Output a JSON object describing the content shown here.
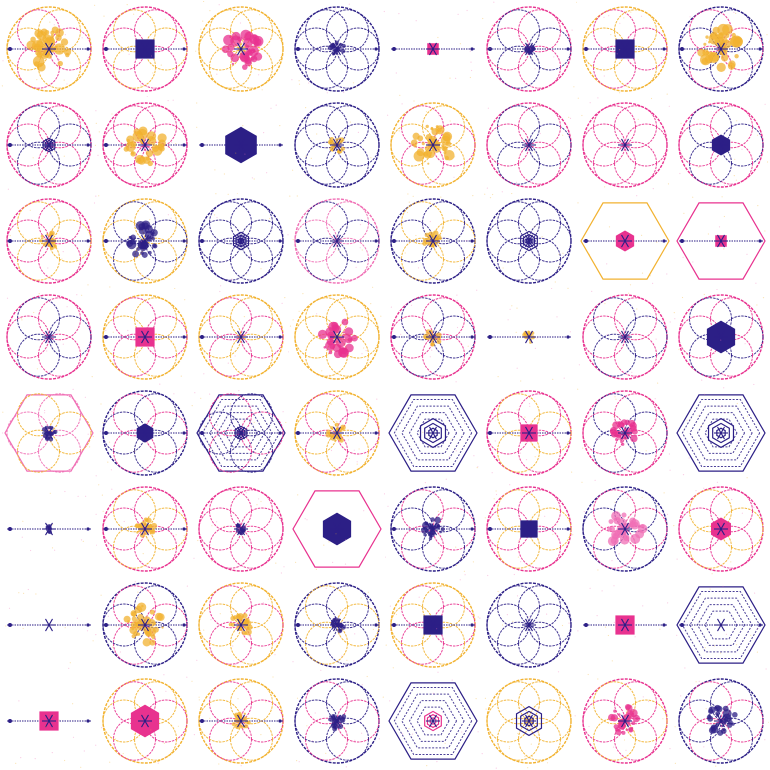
{
  "colors": {
    "navy": "#2c1f86",
    "magenta": "#e8328f",
    "gold": "#f2b230",
    "pink": "#f06fb5",
    "white": "#ffffff"
  },
  "tiles": [
    {
      "frame": "circle",
      "frame_color": "gold",
      "flower": "magenta",
      "center": "blob",
      "center_color": "gold",
      "center_size": 0.42,
      "spokes": true
    },
    {
      "frame": "circle",
      "frame_color": "magenta",
      "flower": "gold",
      "center": "square",
      "center_color": "navy",
      "center_size": 0.2,
      "spokes": true
    },
    {
      "frame": "circle",
      "frame_color": "gold",
      "flower": "gold",
      "center": "blob",
      "center_color": "magenta",
      "center_size": 0.4,
      "spokes": false
    },
    {
      "frame": "circle",
      "frame_color": "navy",
      "flower": "navy",
      "center": "blob",
      "center_color": "navy",
      "center_size": 0.16,
      "spokes": true
    },
    {
      "frame": "none",
      "frame_color": "navy",
      "flower": "none",
      "center": "square",
      "center_color": "magenta",
      "center_size": 0.12,
      "spokes": true
    },
    {
      "frame": "circle",
      "frame_color": "magenta",
      "flower": "navy",
      "center": "blob",
      "center_color": "navy",
      "center_size": 0.1,
      "spokes": true
    },
    {
      "frame": "circle",
      "frame_color": "gold",
      "flower": "magenta",
      "center": "square",
      "center_color": "navy",
      "center_size": 0.2,
      "spokes": true
    },
    {
      "frame": "circle",
      "frame_color": "navy",
      "flower": "magenta",
      "center": "blob",
      "center_color": "gold",
      "center_size": 0.44,
      "spokes": true
    },
    {
      "frame": "circle",
      "frame_color": "magenta",
      "flower": "navy",
      "center": "rings",
      "center_color": "navy",
      "center_size": 0.14,
      "spokes": true
    },
    {
      "frame": "circle",
      "frame_color": "magenta",
      "flower": "magenta",
      "center": "blob",
      "center_color": "gold",
      "center_size": 0.4,
      "spokes": true
    },
    {
      "frame": "none",
      "frame_color": "navy",
      "flower": "none",
      "center": "hexagon",
      "center_color": "navy",
      "center_size": 0.38,
      "spokes": true
    },
    {
      "frame": "circle",
      "frame_color": "navy",
      "flower": "navy",
      "center": "blob",
      "center_color": "gold",
      "center_size": 0.16,
      "spokes": false
    },
    {
      "frame": "circle",
      "frame_color": "gold",
      "flower": "magenta",
      "center": "blob",
      "center_color": "gold",
      "center_size": 0.42,
      "spokes": false
    },
    {
      "frame": "circle",
      "frame_color": "magenta",
      "flower": "navy",
      "center": "none",
      "center_color": "navy",
      "center_size": 0.06,
      "spokes": false
    },
    {
      "frame": "circle",
      "frame_color": "magenta",
      "flower": "magenta",
      "center": "none",
      "center_color": "navy",
      "center_size": 0.06,
      "spokes": false
    },
    {
      "frame": "circle",
      "frame_color": "magenta",
      "flower": "navy",
      "center": "hexagon",
      "center_color": "navy",
      "center_size": 0.22,
      "spokes": false
    },
    {
      "frame": "circle",
      "frame_color": "magenta",
      "flower": "gold",
      "center": "blob",
      "center_color": "gold",
      "center_size": 0.18,
      "spokes": true
    },
    {
      "frame": "circle",
      "frame_color": "gold",
      "flower": "navy",
      "center": "blob",
      "center_color": "navy",
      "center_size": 0.34,
      "spokes": true
    },
    {
      "frame": "circle",
      "frame_color": "navy",
      "flower": "navy",
      "center": "rings",
      "center_color": "navy",
      "center_size": 0.18,
      "spokes": true
    },
    {
      "frame": "circle",
      "frame_color": "pink",
      "flower": "navy",
      "center": "none",
      "center_color": "navy",
      "center_size": 0.06,
      "spokes": true
    },
    {
      "frame": "circle",
      "frame_color": "navy",
      "flower": "gold",
      "center": "blob",
      "center_color": "gold",
      "center_size": 0.18,
      "spokes": true
    },
    {
      "frame": "circle",
      "frame_color": "navy",
      "flower": "navy",
      "center": "rings",
      "center_color": "navy",
      "center_size": 0.2,
      "spokes": false
    },
    {
      "frame": "hexagon",
      "frame_color": "gold",
      "flower": "none",
      "center": "hexagon",
      "center_color": "magenta",
      "center_size": 0.22,
      "spokes": true
    },
    {
      "frame": "hexagon",
      "frame_color": "magenta",
      "flower": "none",
      "center": "square",
      "center_color": "magenta",
      "center_size": 0.12,
      "spokes": true
    },
    {
      "frame": "circle",
      "frame_color": "magenta",
      "flower": "navy",
      "center": "none",
      "center_color": "navy",
      "center_size": 0.06,
      "spokes": false
    },
    {
      "frame": "circle",
      "frame_color": "gold",
      "flower": "magenta",
      "center": "square",
      "center_color": "magenta",
      "center_size": 0.2,
      "spokes": true
    },
    {
      "frame": "circle",
      "frame_color": "gold",
      "flower": "magenta",
      "center": "none",
      "center_color": "navy",
      "center_size": 0.06,
      "spokes": true
    },
    {
      "frame": "circle",
      "frame_color": "gold",
      "flower": "gold",
      "center": "blob",
      "center_color": "magenta",
      "center_size": 0.38,
      "spokes": false
    },
    {
      "frame": "circle",
      "frame_color": "magenta",
      "flower": "navy",
      "center": "blob",
      "center_color": "gold",
      "center_size": 0.16,
      "spokes": true
    },
    {
      "frame": "none",
      "frame_color": "navy",
      "flower": "none",
      "center": "blob",
      "center_color": "gold",
      "center_size": 0.12,
      "spokes": true
    },
    {
      "frame": "circle",
      "frame_color": "magenta",
      "flower": "navy",
      "center": "none",
      "center_color": "navy",
      "center_size": 0.06,
      "spokes": false
    },
    {
      "frame": "circle",
      "frame_color": "magenta",
      "flower": "navy",
      "center": "hexagon",
      "center_color": "navy",
      "center_size": 0.34,
      "spokes": false
    },
    {
      "frame": "hexagon",
      "frame_color": "pink",
      "flower": "gold",
      "center": "blob",
      "center_color": "navy",
      "center_size": 0.14,
      "spokes": false
    },
    {
      "frame": "circle",
      "frame_color": "navy",
      "flower": "magenta",
      "center": "hexagon",
      "center_color": "navy",
      "center_size": 0.2,
      "spokes": true
    },
    {
      "frame": "hexagon",
      "frame_color": "navy",
      "flower": "magenta",
      "center": "rings",
      "center_color": "navy",
      "center_size": 0.14,
      "spokes": true
    },
    {
      "frame": "circle",
      "frame_color": "gold",
      "flower": "magenta",
      "center": "blob",
      "center_color": "gold",
      "center_size": 0.18,
      "spokes": true
    },
    {
      "frame": "hexagon",
      "frame_color": "navy",
      "flower": "none",
      "center": "rings",
      "center_color": "navy",
      "center_size": 0.3,
      "spokes": false
    },
    {
      "frame": "circle",
      "frame_color": "magenta",
      "flower": "gold",
      "center": "square",
      "center_color": "magenta",
      "center_size": 0.18,
      "spokes": true
    },
    {
      "frame": "circle",
      "frame_color": "magenta",
      "flower": "navy",
      "center": "blob",
      "center_color": "magenta",
      "center_size": 0.26,
      "spokes": false
    },
    {
      "frame": "hexagon",
      "frame_color": "navy",
      "flower": "none",
      "center": "rings",
      "center_color": "navy",
      "center_size": 0.3,
      "spokes": false
    },
    {
      "frame": "none",
      "frame_color": "navy",
      "flower": "none",
      "center": "blob",
      "center_color": "navy",
      "center_size": 0.08,
      "spokes": true
    },
    {
      "frame": "circle",
      "frame_color": "magenta",
      "flower": "gold",
      "center": "blob",
      "center_color": "gold",
      "center_size": 0.2,
      "spokes": true
    },
    {
      "frame": "circle",
      "frame_color": "magenta",
      "flower": "magenta",
      "center": "blob",
      "center_color": "navy",
      "center_size": 0.1,
      "spokes": false
    },
    {
      "frame": "hexagon",
      "frame_color": "magenta",
      "flower": "none",
      "center": "hexagon",
      "center_color": "navy",
      "center_size": 0.34,
      "spokes": false
    },
    {
      "frame": "circle",
      "frame_color": "navy",
      "flower": "magenta",
      "center": "blob",
      "center_color": "navy",
      "center_size": 0.22,
      "spokes": true
    },
    {
      "frame": "circle",
      "frame_color": "magenta",
      "flower": "gold",
      "center": "square",
      "center_color": "navy",
      "center_size": 0.18,
      "spokes": true
    },
    {
      "frame": "circle",
      "frame_color": "navy",
      "flower": "magenta",
      "center": "blob",
      "center_color": "pink",
      "center_size": 0.38,
      "spokes": false
    },
    {
      "frame": "circle",
      "frame_color": "magenta",
      "flower": "gold",
      "center": "hexagon",
      "center_color": "magenta",
      "center_size": 0.24,
      "spokes": false
    },
    {
      "frame": "none",
      "frame_color": "navy",
      "flower": "none",
      "center": "none",
      "center_color": "navy",
      "center_size": 0.04,
      "spokes": true
    },
    {
      "frame": "circle",
      "frame_color": "navy",
      "flower": "magenta",
      "center": "blob",
      "center_color": "gold",
      "center_size": 0.4,
      "spokes": true
    },
    {
      "frame": "circle",
      "frame_color": "gold",
      "flower": "magenta",
      "center": "blob",
      "center_color": "gold",
      "center_size": 0.22,
      "spokes": false
    },
    {
      "frame": "circle",
      "frame_color": "navy",
      "flower": "gold",
      "center": "blob",
      "center_color": "navy",
      "center_size": 0.14,
      "spokes": true
    },
    {
      "frame": "circle",
      "frame_color": "gold",
      "flower": "magenta",
      "center": "square",
      "center_color": "navy",
      "center_size": 0.2,
      "spokes": true
    },
    {
      "frame": "circle",
      "frame_color": "navy",
      "flower": "navy",
      "center": "none",
      "center_color": "navy",
      "center_size": 0.06,
      "spokes": false
    },
    {
      "frame": "none",
      "frame_color": "navy",
      "flower": "none",
      "center": "square",
      "center_color": "magenta",
      "center_size": 0.2,
      "spokes": true
    },
    {
      "frame": "hexagon",
      "frame_color": "navy",
      "flower": "none",
      "center": "none",
      "center_color": "navy",
      "center_size": 0.06,
      "spokes": true
    },
    {
      "frame": "none",
      "frame_color": "navy",
      "flower": "none",
      "center": "square",
      "center_color": "magenta",
      "center_size": 0.2,
      "spokes": true
    },
    {
      "frame": "circle",
      "frame_color": "gold",
      "flower": "magenta",
      "center": "hexagon",
      "center_color": "magenta",
      "center_size": 0.34,
      "spokes": false
    },
    {
      "frame": "circle",
      "frame_color": "gold",
      "flower": "magenta",
      "center": "blob",
      "center_color": "gold",
      "center_size": 0.18,
      "spokes": true
    },
    {
      "frame": "circle",
      "frame_color": "navy",
      "flower": "magenta",
      "center": "blob",
      "center_color": "navy",
      "center_size": 0.18,
      "spokes": false
    },
    {
      "frame": "hexagon",
      "frame_color": "navy",
      "flower": "none",
      "center": "rings",
      "center_color": "magenta",
      "center_size": 0.2,
      "spokes": false
    },
    {
      "frame": "circle",
      "frame_color": "gold",
      "flower": "gold",
      "center": "rings",
      "center_color": "navy",
      "center_size": 0.3,
      "spokes": false
    },
    {
      "frame": "circle",
      "frame_color": "magenta",
      "flower": "gold",
      "center": "blob",
      "center_color": "magenta",
      "center_size": 0.3,
      "spokes": false
    },
    {
      "frame": "circle",
      "frame_color": "navy",
      "flower": "magenta",
      "center": "blob",
      "center_color": "navy",
      "center_size": 0.32,
      "spokes": false
    }
  ]
}
